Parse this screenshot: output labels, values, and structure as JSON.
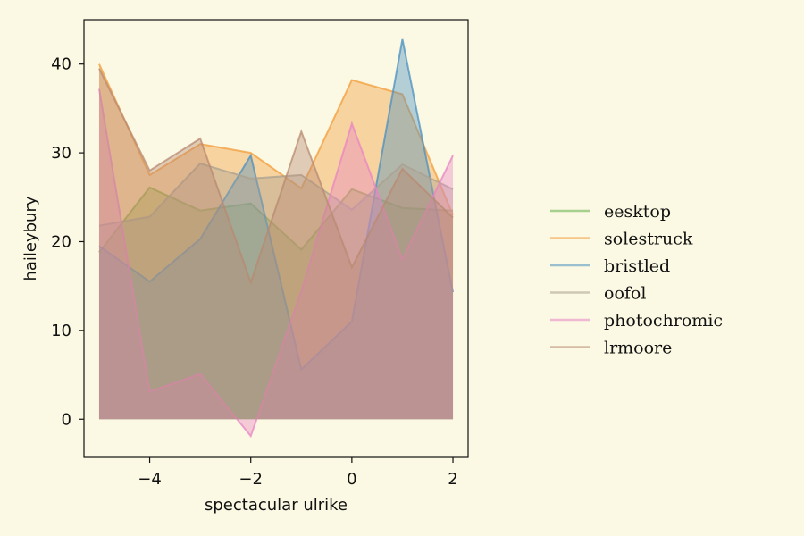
{
  "chart_data": {
    "type": "area",
    "title": "",
    "xlabel": "spectacular ulrike",
    "ylabel": "haileybury",
    "xlim": [
      -5.3,
      2.3
    ],
    "ylim": [
      -4.3,
      45
    ],
    "xticks": [
      -4,
      -2,
      0,
      2
    ],
    "yticks": [
      0,
      10,
      20,
      30,
      40
    ],
    "grid": false,
    "legend_position": "right",
    "x": [
      -5,
      -4,
      -3,
      -2,
      -1,
      0,
      1,
      2
    ],
    "series": [
      {
        "name": "eesktop",
        "color": "#5fae48",
        "values": [
          18.8,
          26.1,
          23.5,
          24.3,
          19.1,
          25.9,
          23.8,
          23.5
        ]
      },
      {
        "name": "solestruck",
        "color": "#f39c3a",
        "values": [
          40.0,
          27.5,
          31.0,
          30.0,
          26.0,
          38.2,
          36.6,
          23.0
        ]
      },
      {
        "name": "bristled",
        "color": "#4a8fc0",
        "values": [
          19.5,
          15.5,
          20.3,
          29.7,
          5.6,
          11.0,
          42.8,
          14.3
        ]
      },
      {
        "name": "oofol",
        "color": "#a9a090",
        "values": [
          21.8,
          22.8,
          28.8,
          27.1,
          27.5,
          23.6,
          28.7,
          25.9
        ]
      },
      {
        "name": "photochromic",
        "color": "#e884c4",
        "values": [
          37.2,
          3.1,
          5.1,
          -1.9,
          14.4,
          33.3,
          18.0,
          29.7
        ]
      },
      {
        "name": "lrmoore",
        "color": "#b88a72",
        "values": [
          39.5,
          28.0,
          31.6,
          15.4,
          32.4,
          17.1,
          28.2,
          22.7
        ]
      }
    ]
  }
}
